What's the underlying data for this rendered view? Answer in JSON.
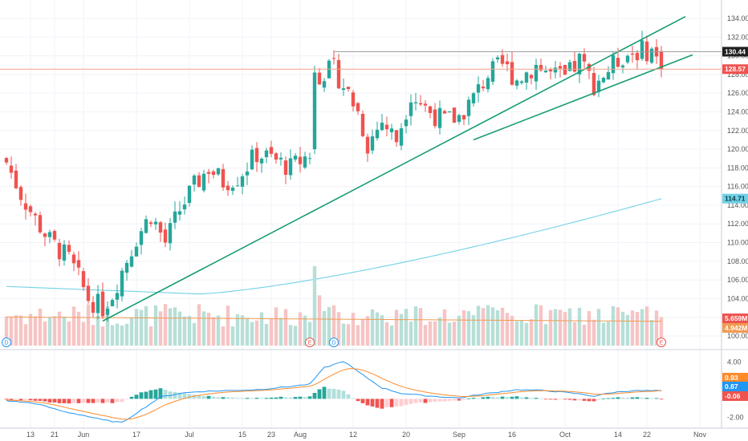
{
  "colors": {
    "up": "#26a69a",
    "down": "#ef5350",
    "up_vol": "#b7dfd7",
    "down_vol": "#f6c4c4",
    "trend": "#179c73",
    "ma_long": "#71d2e6",
    "ma_vol": "#f19b52",
    "macd": "#2196f3",
    "signal": "#ff8a2a",
    "grid": "#f0f3fa"
  },
  "price_axis": {
    "min": 100,
    "max": 134,
    "ticks": [
      "134.00",
      "132.00",
      "130.00",
      "128.00",
      "126.00",
      "124.00",
      "122.00",
      "120.00",
      "118.00",
      "116.00",
      "114.00",
      "112.00",
      "110.00",
      "108.00",
      "106.00",
      "104.00",
      "102.00",
      "100.00"
    ]
  },
  "x_axis": {
    "labels": [
      "13",
      "21",
      "Jun",
      "17",
      "Jul",
      "15",
      "23",
      "Aug",
      "12",
      "20",
      "Sep",
      "16",
      "Oct",
      "14",
      "22",
      "Nov"
    ],
    "label_index": [
      5,
      10,
      16,
      27,
      38,
      49,
      55,
      61,
      72,
      83,
      94,
      105,
      116,
      127,
      133,
      144
    ]
  },
  "price_labels": [
    {
      "value": 130.44,
      "text": "130.44",
      "bg": "#1f1f1f",
      "fg": "#ffffff"
    },
    {
      "value": 128.57,
      "text": "128.57",
      "bg": "#ef5350",
      "fg": "#ffffff"
    },
    {
      "value": 114.71,
      "text": "114.71",
      "bg": "#71d2e6",
      "fg": "#0b3b45"
    }
  ],
  "volume_labels": [
    {
      "text": "5.659M",
      "bg": "#ef5350",
      "fg": "#ffffff"
    },
    {
      "text": "4.942M",
      "bg": "#f19b52",
      "fg": "#ffffff"
    }
  ],
  "macd_axis": {
    "min": -3.2,
    "max": 5.2,
    "ticks": [
      {
        "v": 4,
        "t": "4.00"
      },
      {
        "v": -2,
        "t": "-2.00"
      }
    ]
  },
  "macd_labels": [
    {
      "v": 0.93,
      "text": "0.93",
      "bg": "#ff8a2a",
      "fg": "#ffffff"
    },
    {
      "v": 0.87,
      "text": "0.87",
      "bg": "#2196f3",
      "fg": "#ffffff"
    },
    {
      "v": -0.06,
      "text": "-0.06",
      "bg": "#ef5350",
      "fg": "#ffffff"
    }
  ],
  "events": [
    {
      "i": 0,
      "text": "D",
      "color": "#2196f3"
    },
    {
      "i": 63,
      "text": "E",
      "color": "#ef5350"
    },
    {
      "i": 68,
      "text": "D",
      "color": "#2196f3"
    },
    {
      "i": 136,
      "text": "E",
      "color": "#ef5350"
    }
  ],
  "chart_data": {
    "type": "candlestick",
    "x_labels": [
      "13",
      "21",
      "Jun",
      "17",
      "Jul",
      "15",
      "23",
      "Aug",
      "12",
      "20",
      "Sep",
      "16",
      "Oct",
      "14",
      "22",
      "Nov"
    ],
    "candles_count": 137,
    "price_range": [
      100,
      134
    ],
    "last_price": 128.57,
    "high_line": 130.44,
    "ma_long_last": 114.71,
    "volume_last": "5.659M",
    "volume_ma_last": "4.942M",
    "trendlines": [
      {
        "from": [
          "May 27",
          101.6
        ],
        "to": [
          "Oct 22",
          134.2
        ]
      },
      {
        "from": [
          "Sep 3",
          121.0
        ],
        "to": [
          "Oct 28",
          130.1
        ]
      }
    ],
    "macd": {
      "macd": 0.87,
      "signal": 0.93,
      "histogram": -0.06
    }
  }
}
